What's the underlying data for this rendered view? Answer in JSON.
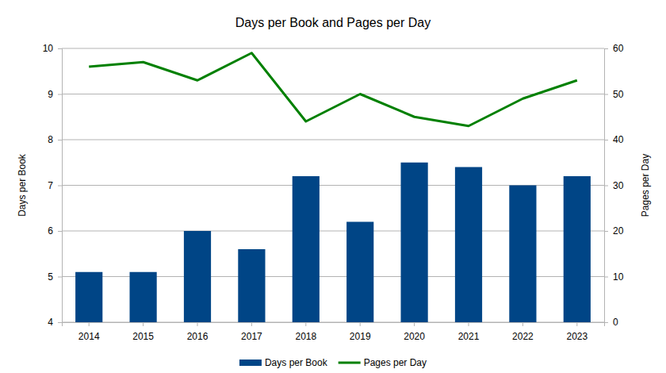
{
  "chart_data": {
    "type": "bar",
    "title": "Days per Book and Pages per Day",
    "categories": [
      "2014",
      "2015",
      "2016",
      "2017",
      "2018",
      "2019",
      "2020",
      "2021",
      "2022",
      "2023"
    ],
    "series": [
      {
        "name": "Days per Book",
        "type": "bar",
        "color": "#004586",
        "values": [
          5.1,
          5.1,
          6.0,
          5.6,
          7.2,
          6.2,
          7.5,
          7.4,
          7.0,
          7.2
        ]
      },
      {
        "name": "Pages per Day",
        "type": "line",
        "color": "#008000",
        "axis": "y2",
        "values": [
          56,
          57,
          53,
          59,
          44,
          50,
          45,
          43,
          49,
          53
        ]
      }
    ],
    "y_label": "Days per Book",
    "y2_label": "Pages per Day",
    "ylim": [
      4,
      10
    ],
    "yticks": [
      4,
      5,
      6,
      7,
      8,
      9,
      10
    ],
    "y2lim": [
      0,
      60
    ],
    "y2ticks": [
      0,
      10,
      20,
      30,
      40,
      50,
      60
    ],
    "grid": true,
    "legend": "bottom"
  }
}
